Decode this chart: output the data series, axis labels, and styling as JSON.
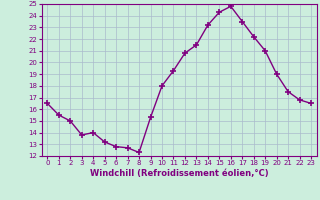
{
  "hours": [
    0,
    1,
    2,
    3,
    4,
    5,
    6,
    7,
    8,
    9,
    10,
    11,
    12,
    13,
    14,
    15,
    16,
    17,
    18,
    19,
    20,
    21,
    22,
    23
  ],
  "values": [
    16.5,
    15.5,
    15.0,
    13.8,
    14.0,
    13.2,
    12.8,
    12.7,
    12.3,
    15.3,
    18.0,
    19.3,
    20.8,
    21.5,
    23.2,
    24.3,
    24.8,
    23.5,
    22.2,
    21.0,
    19.0,
    17.5,
    16.8,
    16.5
  ],
  "line_color": "#800080",
  "marker_color": "#800080",
  "bg_color": "#cceedd",
  "grid_color": "#aabbcc",
  "xlabel": "Windchill (Refroidissement éolien,°C)",
  "xlabel_color": "#800080",
  "tick_color": "#800080",
  "ylim": [
    12,
    25
  ],
  "yticks": [
    12,
    13,
    14,
    15,
    16,
    17,
    18,
    19,
    20,
    21,
    22,
    23,
    24,
    25
  ],
  "axis_line_color": "#800080"
}
